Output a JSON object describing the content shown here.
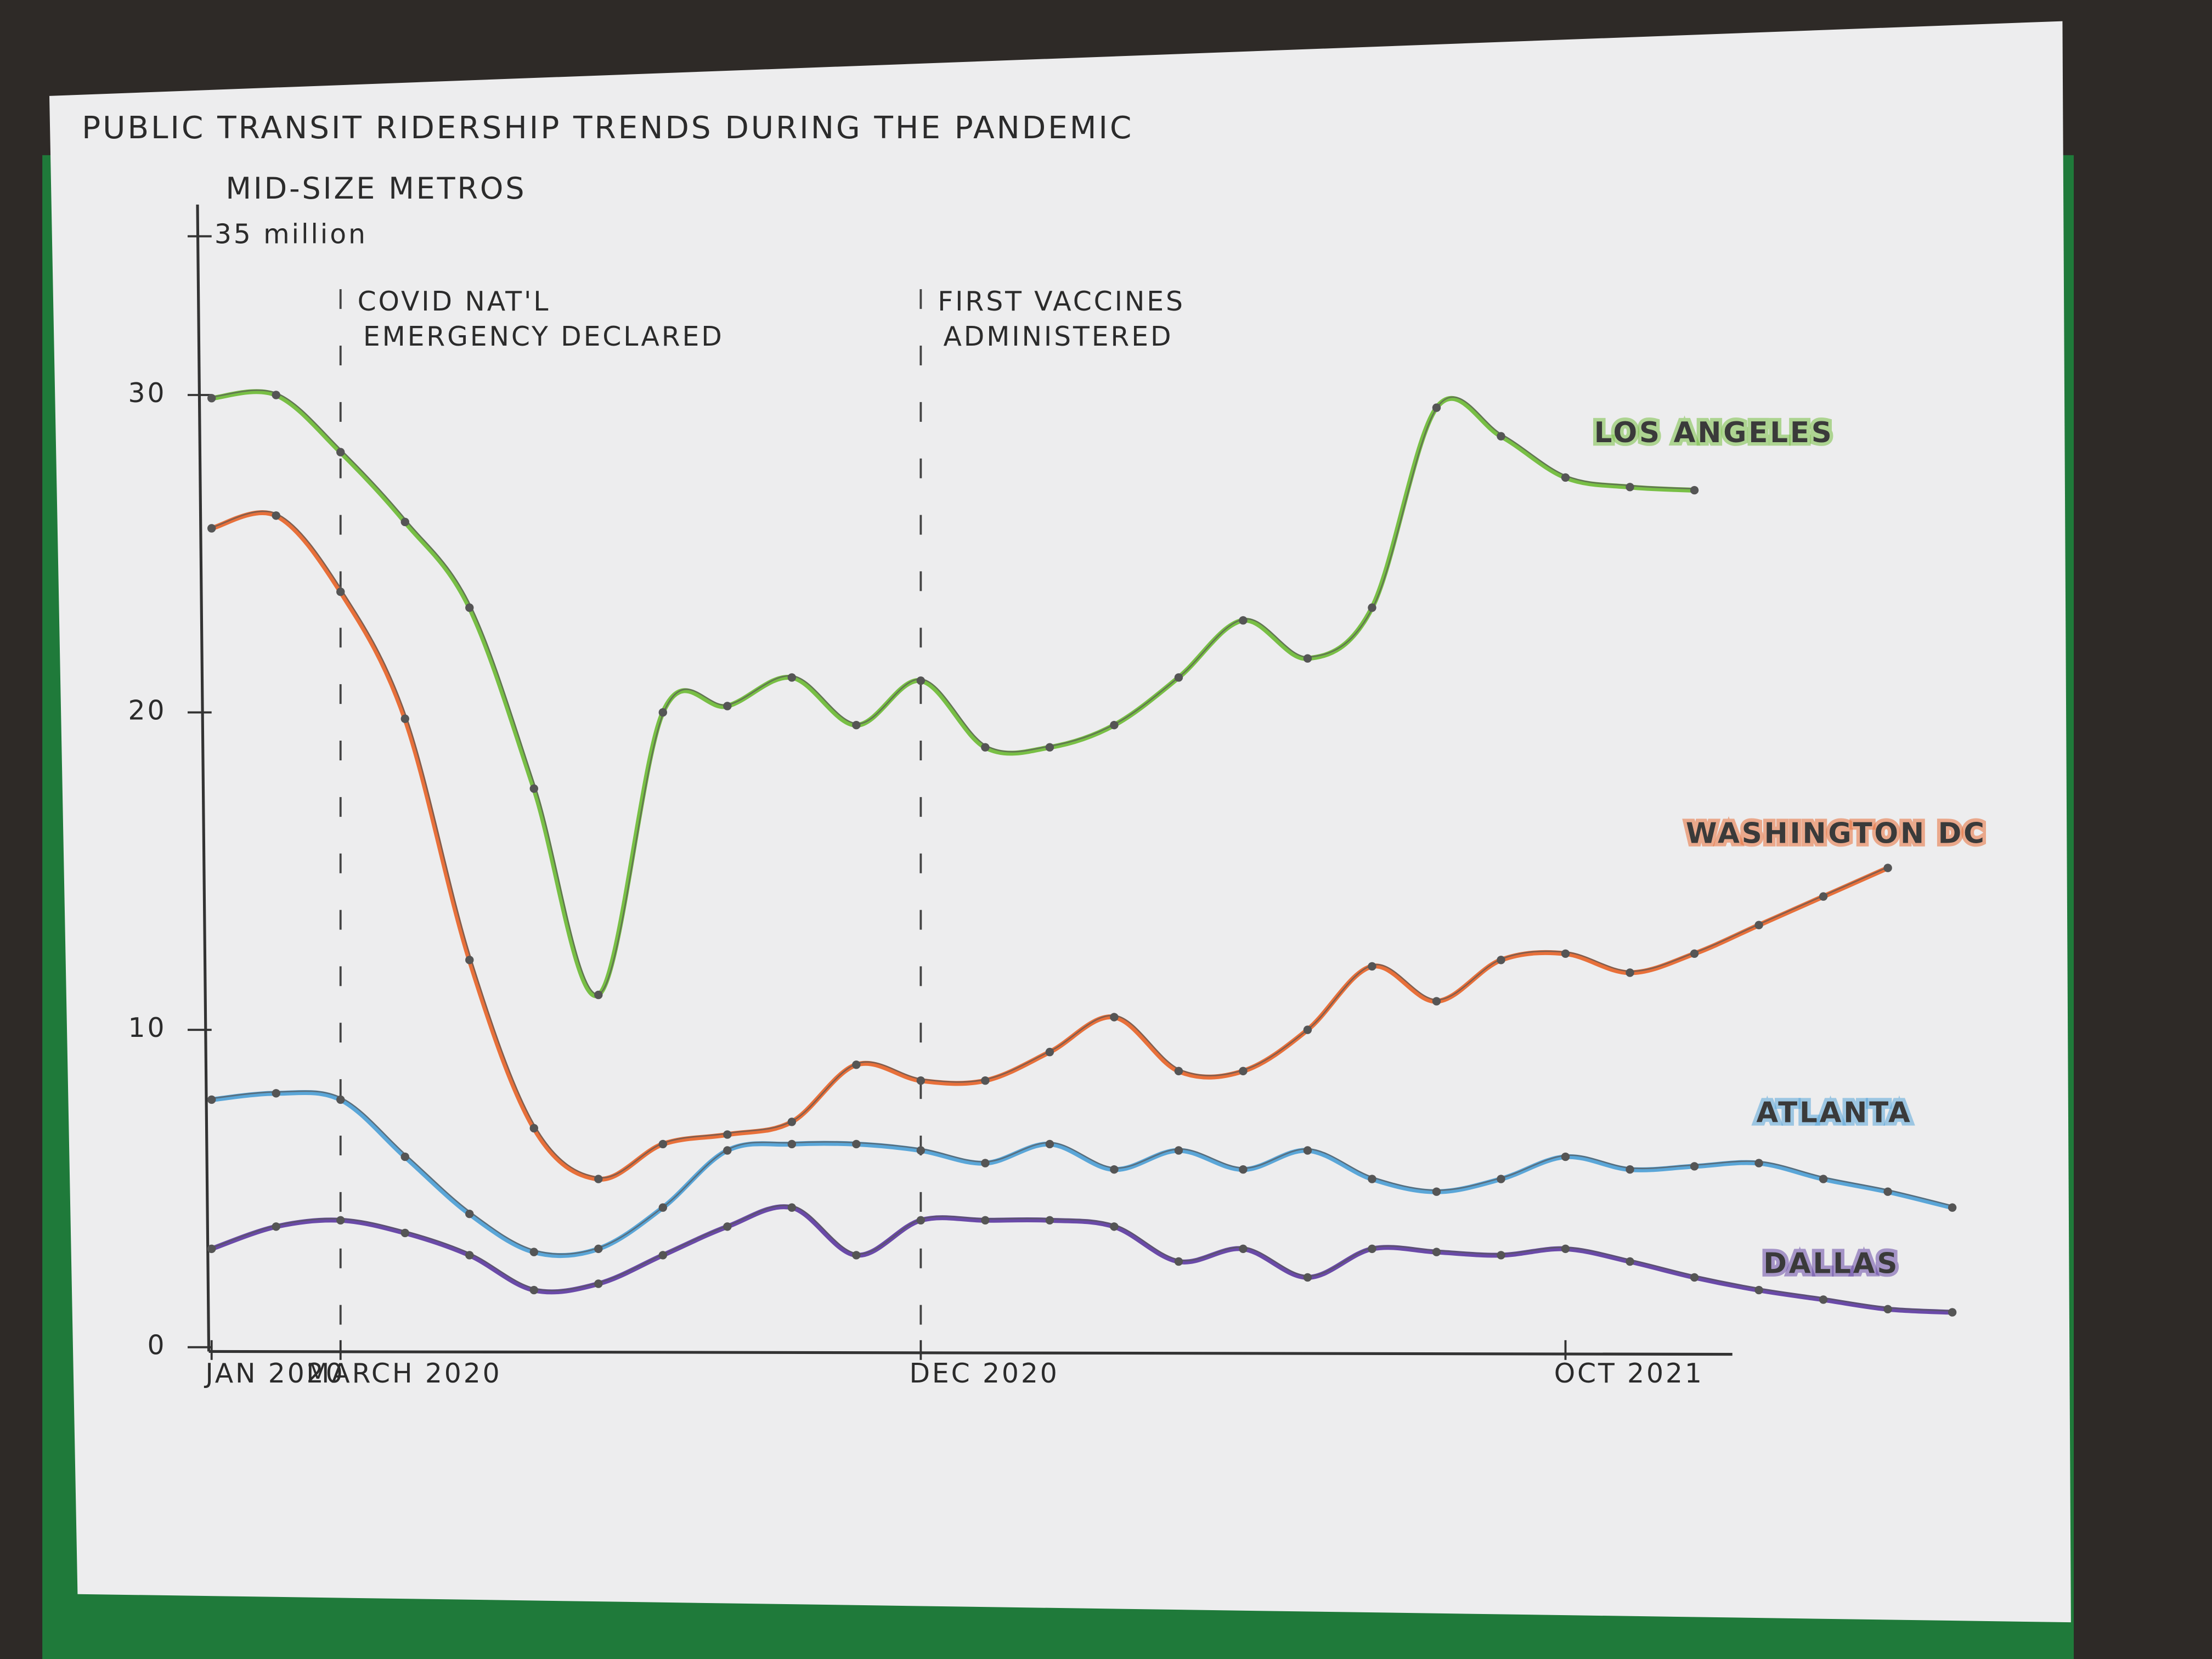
{
  "chart_data": {
    "type": "line",
    "title": "PUBLIC TRANSIT RIDERSHIP TRENDS DURING THE PANDEMIC",
    "subtitle": "MID-SIZE METROS",
    "categories": [
      "JAN 2020",
      null,
      "MARCH 2020",
      null,
      null,
      null,
      null,
      null,
      null,
      null,
      null,
      "DEC 2020",
      null,
      null,
      null,
      null,
      null,
      null,
      null,
      null,
      null,
      "OCT 2021",
      null,
      null,
      null,
      null,
      null,
      null
    ],
    "ylim": [
      0,
      36
    ],
    "yticks": [
      0,
      10,
      20,
      30,
      {
        "value": 35,
        "label": "35 million"
      }
    ],
    "annotations": [
      {
        "text": [
          "COVID NAT'L",
          "EMERGENCY DECLARED"
        ],
        "x": "MARCH 2020"
      },
      {
        "text": [
          "FIRST VACCINES",
          "ADMINISTERED"
        ],
        "x": "DEC 2020"
      }
    ],
    "series": [
      {
        "name": "LOS ANGELES",
        "color": "#78bf45",
        "values": [
          29.9,
          30,
          28.2,
          26,
          23.3,
          17.6,
          11.1,
          20,
          20.2,
          21.1,
          19.6,
          21,
          18.9,
          18.9,
          19.6,
          21.1,
          22.9,
          21.7,
          23.3,
          29.6,
          28.7,
          27.4,
          27.1,
          27,
          null,
          null,
          null,
          null
        ]
      },
      {
        "name": "WASHINGTON DC",
        "color": "#e8703a",
        "values": [
          25.8,
          26.2,
          23.8,
          19.8,
          12.2,
          6.9,
          5.3,
          6.4,
          6.7,
          7.1,
          8.9,
          8.4,
          8.4,
          9.3,
          10.4,
          8.7,
          8.7,
          10,
          12,
          10.9,
          12.2,
          12.4,
          11.8,
          12.4,
          13.3,
          14.2,
          15.1,
          null
        ]
      },
      {
        "name": "ATLANTA",
        "color": "#5aa6d8",
        "values": [
          7.8,
          8,
          7.8,
          6,
          4.2,
          3,
          3.1,
          4.4,
          6.2,
          6.4,
          6.4,
          6.2,
          5.8,
          6.4,
          5.6,
          6.2,
          5.6,
          6.2,
          5.3,
          4.9,
          5.3,
          6,
          5.6,
          5.7,
          5.8,
          5.3,
          4.9,
          4.4
        ]
      },
      {
        "name": "DALLAS",
        "color": "#6a4aa8",
        "values": [
          3.1,
          3.8,
          4,
          3.6,
          2.9,
          1.8,
          2,
          2.9,
          3.8,
          4.4,
          2.9,
          4,
          4,
          4,
          3.8,
          2.7,
          3.1,
          2.2,
          3.1,
          3,
          2.9,
          3.1,
          2.7,
          2.2,
          1.8,
          1.5,
          1.2,
          1.1
        ]
      }
    ]
  }
}
